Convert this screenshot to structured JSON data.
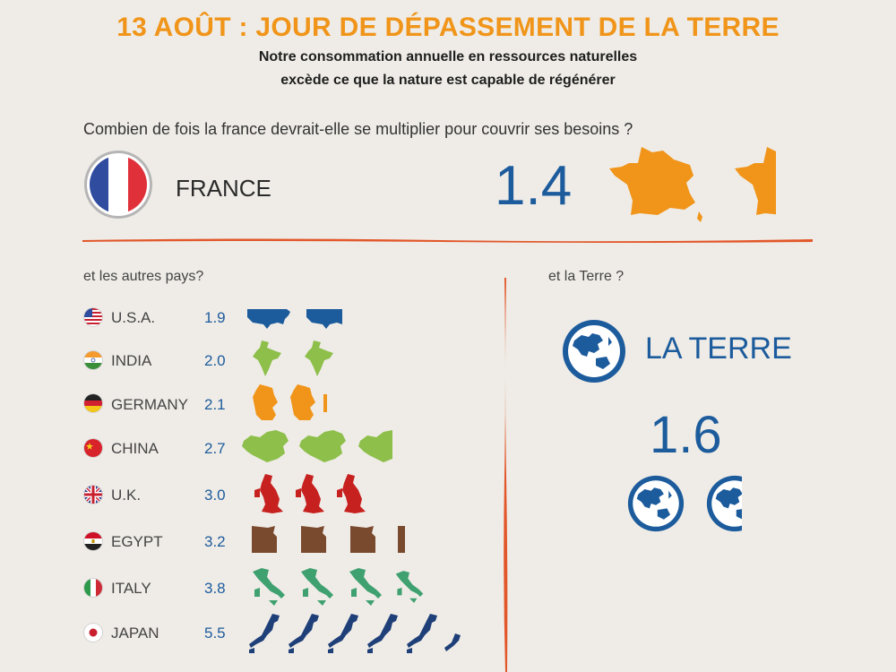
{
  "header": {
    "title": "13 AOÛT : JOUR DE DÉPASSEMENT DE LA TERRE",
    "subtitle_line1": "Notre consommation annuelle en ressources naturelles",
    "subtitle_line2": "excède ce que la nature est capable de régénérer"
  },
  "france": {
    "question": "Combien de fois la france devrait-elle se multiplier pour couvrir ses besoins  ?",
    "name": "FRANCE",
    "value": "1.4",
    "color": "#f0951a"
  },
  "others": {
    "heading": "et les autres pays?",
    "countries": [
      {
        "name": "U.S.A.",
        "value": "1.9",
        "ratio": 1.9,
        "color": "#1c5b9c",
        "icon": "usa-map-icon"
      },
      {
        "name": "INDIA",
        "value": "2.0",
        "ratio": 2.0,
        "color": "#8dbf4a",
        "icon": "india-map-icon"
      },
      {
        "name": "GERMANY",
        "value": "2.1",
        "ratio": 2.1,
        "color": "#f0951a",
        "icon": "germany-map-icon"
      },
      {
        "name": "CHINA",
        "value": "2.7",
        "ratio": 2.7,
        "color": "#8dbf4a",
        "icon": "china-map-icon"
      },
      {
        "name": "U.K.",
        "value": "3.0",
        "ratio": 3.0,
        "color": "#c6201f",
        "icon": "uk-map-icon"
      },
      {
        "name": "EGYPT",
        "value": "3.2",
        "ratio": 3.2,
        "color": "#7a4a2e",
        "icon": "egypt-map-icon"
      },
      {
        "name": "ITALY",
        "value": "3.8",
        "ratio": 3.8,
        "color": "#3fa070",
        "icon": "italy-map-icon"
      },
      {
        "name": "JAPAN",
        "value": "5.5",
        "ratio": 5.5,
        "color": "#1e3f78",
        "icon": "japan-map-icon"
      }
    ]
  },
  "earth": {
    "heading": "et la Terre ?",
    "name": "LA TERRE",
    "value": "1.6",
    "ratio": 1.6,
    "color": "#1c5b9c"
  },
  "colors": {
    "title": "#f0951a",
    "number": "#1c5b9c",
    "divider": "#e2572a"
  }
}
